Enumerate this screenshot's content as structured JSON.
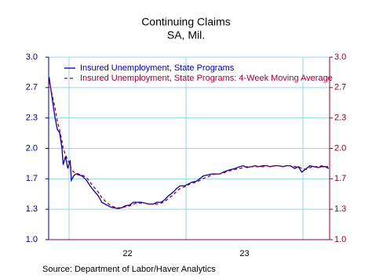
{
  "chart_data": {
    "type": "line",
    "title": "Continuing Claims",
    "subtitle": "SA, Mil.",
    "source": "Source:  Department of Labor/Haver Analytics",
    "legend": "upper left",
    "grid": true,
    "grid_color": "#8fd8e8",
    "xlim": [
      21.826,
      24.228
    ],
    "xticks": [
      {
        "value": 22.5,
        "label": "22"
      },
      {
        "value": 23.5,
        "label": "23"
      }
    ],
    "xgridlines": [
      22,
      23,
      24
    ],
    "ylim": [
      1,
      3
    ],
    "yticks": [
      {
        "value": 1,
        "label": "1.0"
      },
      {
        "value": 1.3333,
        "label": "1.3"
      },
      {
        "value": 1.6667,
        "label": "1.7"
      },
      {
        "value": 2,
        "label": "2.0"
      },
      {
        "value": 2.3333,
        "label": "2.3"
      },
      {
        "value": 2.6667,
        "label": "2.7"
      },
      {
        "value": 3,
        "label": "3.0"
      }
    ],
    "y2lim": [
      1,
      3
    ],
    "y2ticks": [
      {
        "value": 1,
        "label": "1.0"
      },
      {
        "value": 1.3333,
        "label": "1.3"
      },
      {
        "value": 1.6667,
        "label": "1.7"
      },
      {
        "value": 2,
        "label": "2.0"
      },
      {
        "value": 2.3333,
        "label": "2.3"
      },
      {
        "value": 2.6667,
        "label": "2.7"
      },
      {
        "value": 3,
        "label": "3.0"
      }
    ],
    "y_color": "#00007a",
    "y2_color": "#8b0028",
    "x": [
      21.83,
      21.85,
      21.88,
      21.9,
      21.92,
      21.94,
      21.95,
      21.97,
      21.99,
      22.01,
      22.02,
      22.04,
      22.06,
      22.08,
      22.11,
      22.15,
      22.18,
      22.21,
      22.25,
      22.28,
      22.32,
      22.35,
      22.38,
      22.42,
      22.45,
      22.48,
      22.52,
      22.55,
      22.58,
      22.62,
      22.65,
      22.68,
      22.72,
      22.75,
      22.79,
      22.82,
      22.85,
      22.89,
      22.92,
      22.95,
      22.99,
      23.02,
      23.05,
      23.09,
      23.12,
      23.15,
      23.19,
      23.22,
      23.26,
      23.29,
      23.32,
      23.36,
      23.39,
      23.42,
      23.46,
      23.49,
      23.52,
      23.56,
      23.59,
      23.62,
      23.66,
      23.69,
      23.72,
      23.76,
      23.79,
      23.83,
      23.86,
      23.89,
      23.93,
      23.96,
      23.99,
      24.03,
      24.06,
      24.09,
      24.13,
      24.16,
      24.19,
      24.22
    ],
    "series": [
      {
        "name": "Insured Unemployment, State Programs",
        "color": "#0000a0",
        "dash": "solid",
        "values": [
          2.78,
          2.6,
          2.34,
          2.21,
          2.17,
          2.0,
          1.82,
          1.91,
          1.78,
          1.87,
          1.65,
          1.7,
          1.72,
          1.71,
          1.7,
          1.65,
          1.59,
          1.54,
          1.48,
          1.41,
          1.38,
          1.36,
          1.35,
          1.34,
          1.35,
          1.37,
          1.38,
          1.41,
          1.41,
          1.41,
          1.4,
          1.39,
          1.39,
          1.41,
          1.41,
          1.44,
          1.48,
          1.52,
          1.56,
          1.59,
          1.59,
          1.61,
          1.63,
          1.64,
          1.67,
          1.7,
          1.71,
          1.72,
          1.72,
          1.72,
          1.74,
          1.76,
          1.77,
          1.78,
          1.8,
          1.81,
          1.79,
          1.8,
          1.81,
          1.8,
          1.81,
          1.81,
          1.8,
          1.81,
          1.81,
          1.8,
          1.81,
          1.81,
          1.78,
          1.8,
          1.74,
          1.78,
          1.81,
          1.8,
          1.79,
          1.8,
          1.8,
          1.78
        ]
      },
      {
        "name": "Insured Unemployment, State Programs: 4-Week Moving Average",
        "color": "#a00030",
        "dash": "dashed",
        "values": [
          2.74,
          2.62,
          2.45,
          2.3,
          2.2,
          2.08,
          2.0,
          1.93,
          1.87,
          1.82,
          1.77,
          1.74,
          1.73,
          1.72,
          1.71,
          1.68,
          1.63,
          1.58,
          1.52,
          1.46,
          1.41,
          1.38,
          1.36,
          1.35,
          1.35,
          1.36,
          1.37,
          1.39,
          1.4,
          1.4,
          1.4,
          1.39,
          1.39,
          1.39,
          1.4,
          1.42,
          1.45,
          1.49,
          1.53,
          1.56,
          1.58,
          1.6,
          1.62,
          1.63,
          1.65,
          1.67,
          1.69,
          1.71,
          1.72,
          1.72,
          1.73,
          1.75,
          1.76,
          1.77,
          1.78,
          1.79,
          1.8,
          1.8,
          1.8,
          1.8,
          1.8,
          1.81,
          1.8,
          1.81,
          1.81,
          1.8,
          1.81,
          1.81,
          1.8,
          1.8,
          1.78,
          1.77,
          1.79,
          1.8,
          1.8,
          1.81,
          1.8,
          1.8
        ]
      }
    ]
  }
}
